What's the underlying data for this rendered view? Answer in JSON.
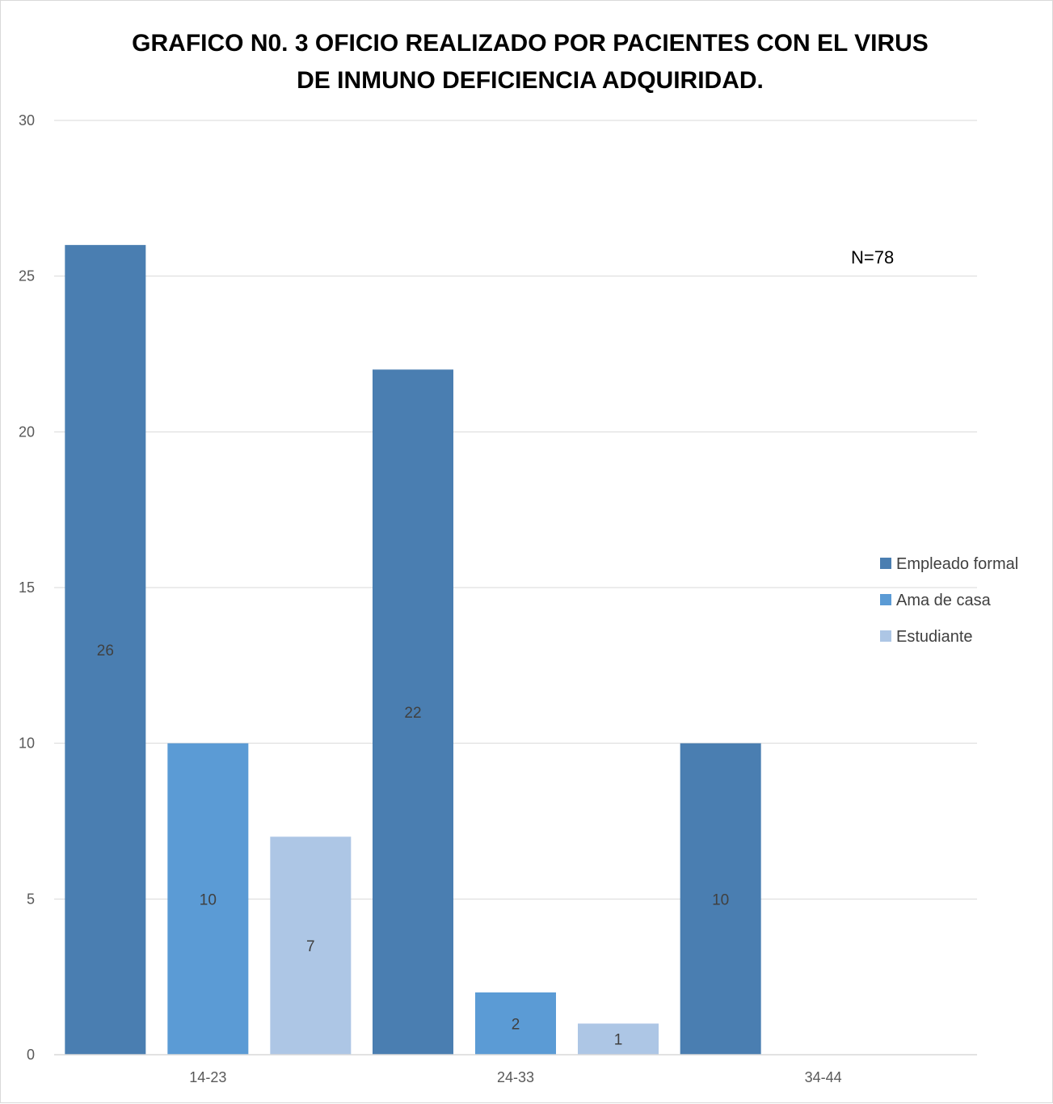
{
  "chart_data": {
    "type": "bar",
    "title": "GRAFICO N0. 3 OFICIO REALIZADO POR PACIENTES CON EL VIRUS DE INMUNO DEFICIENCIA ADQUIRIDAD.",
    "categories": [
      "14-23",
      "24-33",
      "34-44"
    ],
    "series": [
      {
        "name": "Empleado formal",
        "values": [
          26,
          22,
          10
        ],
        "color": "#4a7eb1"
      },
      {
        "name": "Ama de casa",
        "values": [
          10,
          2,
          0
        ],
        "color": "#5b9bd5"
      },
      {
        "name": "Estudiante",
        "values": [
          7,
          1,
          0
        ],
        "color": "#adc6e5"
      }
    ],
    "data_labels": [
      [
        "26",
        "22",
        "10"
      ],
      [
        "10",
        "2",
        ""
      ],
      [
        "7",
        "1",
        ""
      ]
    ],
    "ylim": [
      0,
      30
    ],
    "yticks": [
      0,
      5,
      10,
      15,
      20,
      25,
      30
    ],
    "grid": true,
    "legend": "right",
    "annotation": "N=78"
  }
}
